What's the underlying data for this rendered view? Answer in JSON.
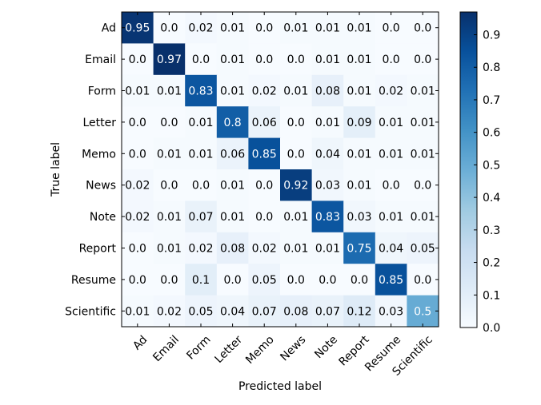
{
  "chart_data": {
    "type": "heatmap",
    "xlabel": "Predicted label",
    "ylabel": "True label",
    "x_categories": [
      "Ad",
      "Email",
      "Form",
      "Letter",
      "Memo",
      "News",
      "Note",
      "Report",
      "Resume",
      "Scientific"
    ],
    "y_categories": [
      "Ad",
      "Email",
      "Form",
      "Letter",
      "Memo",
      "News",
      "Note",
      "Report",
      "Resume",
      "Scientific"
    ],
    "cells": [
      [
        "0.95",
        "0.0",
        "0.02",
        "0.01",
        "0.0",
        "0.01",
        "0.01",
        "0.01",
        "0.0",
        "0.0"
      ],
      [
        "0.0",
        "0.97",
        "0.0",
        "0.01",
        "0.0",
        "0.0",
        "0.01",
        "0.01",
        "0.0",
        "0.0"
      ],
      [
        "0.01",
        "0.01",
        "0.83",
        "0.01",
        "0.02",
        "0.01",
        "0.08",
        "0.01",
        "0.02",
        "0.01"
      ],
      [
        "0.0",
        "0.0",
        "0.01",
        "0.8",
        "0.06",
        "0.0",
        "0.01",
        "0.09",
        "0.01",
        "0.01"
      ],
      [
        "0.0",
        "0.01",
        "0.01",
        "0.06",
        "0.85",
        "0.0",
        "0.04",
        "0.01",
        "0.01",
        "0.01"
      ],
      [
        "0.02",
        "0.0",
        "0.0",
        "0.01",
        "0.0",
        "0.92",
        "0.03",
        "0.01",
        "0.0",
        "0.0"
      ],
      [
        "0.02",
        "0.01",
        "0.07",
        "0.01",
        "0.0",
        "0.01",
        "0.83",
        "0.03",
        "0.01",
        "0.01"
      ],
      [
        "0.0",
        "0.01",
        "0.02",
        "0.08",
        "0.02",
        "0.01",
        "0.01",
        "0.75",
        "0.04",
        "0.05"
      ],
      [
        "0.0",
        "0.0",
        "0.1",
        "0.0",
        "0.05",
        "0.0",
        "0.0",
        "0.0",
        "0.85",
        "0.0"
      ],
      [
        "0.01",
        "0.02",
        "0.05",
        "0.04",
        "0.07",
        "0.08",
        "0.07",
        "0.12",
        "0.03",
        "0.5"
      ]
    ],
    "colorbar": {
      "range": [
        0.0,
        0.97
      ],
      "ticks": [
        "0.0",
        "0.1",
        "0.2",
        "0.3",
        "0.4",
        "0.5",
        "0.6",
        "0.7",
        "0.8",
        "0.9"
      ],
      "colormap": "Blues",
      "low_color": "#f7fbff",
      "high_color": "#08306b"
    }
  }
}
